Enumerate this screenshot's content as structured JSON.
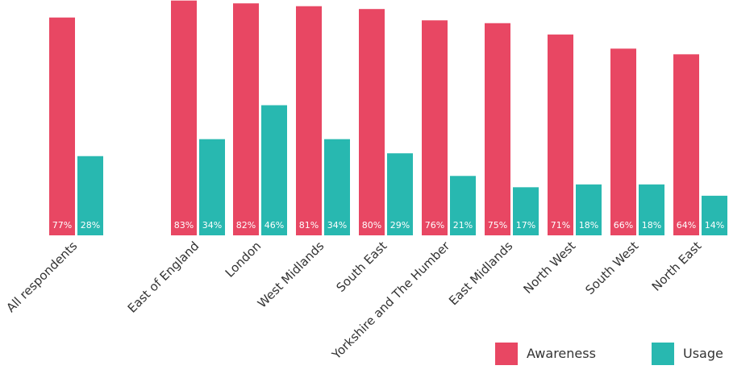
{
  "chart_data": {
    "type": "bar",
    "categories": [
      "All respondents",
      "East of England",
      "London",
      "West Midlands",
      "South East",
      "Yorkshire and The Humber",
      "East Midlands",
      "North West",
      "South West",
      "North East"
    ],
    "series": [
      {
        "name": "Awareness",
        "values": [
          77,
          83,
          82,
          81,
          80,
          76,
          75,
          71,
          66,
          64
        ],
        "labels": [
          "77%",
          "83%",
          "82%",
          "81%",
          "80%",
          "76%",
          "75%",
          "71%",
          "66%",
          "64%"
        ],
        "color": "#E84763"
      },
      {
        "name": "Usage",
        "values": [
          28,
          34,
          46,
          34,
          29,
          21,
          17,
          18,
          18,
          14
        ],
        "labels": [
          "28%",
          "34%",
          "46%",
          "34%",
          "29%",
          "21%",
          "17%",
          "18%",
          "18%",
          "14%"
        ],
        "color": "#28B8B0"
      }
    ],
    "ylim": [
      0,
      100
    ],
    "grid": false,
    "legend": "bottom-right",
    "title": "",
    "xlabel": "",
    "ylabel": ""
  }
}
